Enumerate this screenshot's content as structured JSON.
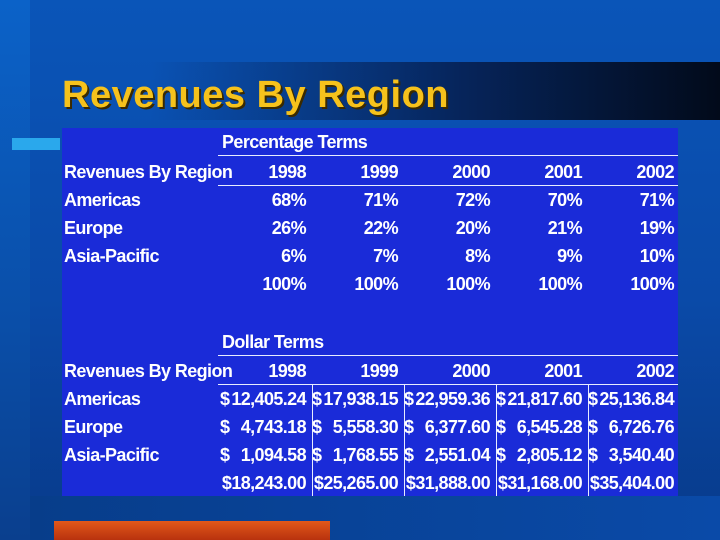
{
  "slide": {
    "title": "Revenues By Region"
  },
  "percentage_table": {
    "section_label": "Percentage Terms",
    "header_label": "Revenues By Region",
    "years": [
      "1998",
      "1999",
      "2000",
      "2001",
      "2002"
    ],
    "rows": [
      {
        "region": "Americas",
        "values": [
          "68%",
          "71%",
          "72%",
          "70%",
          "71%"
        ]
      },
      {
        "region": "Europe",
        "values": [
          "26%",
          "22%",
          "20%",
          "21%",
          "19%"
        ]
      },
      {
        "region": "Asia-Pacific",
        "values": [
          "6%",
          "7%",
          "8%",
          "9%",
          "10%"
        ]
      },
      {
        "region": "",
        "values": [
          "100%",
          "100%",
          "100%",
          "100%",
          "100%"
        ]
      }
    ]
  },
  "dollar_table": {
    "section_label": "Dollar Terms",
    "header_label": "Revenues By Region",
    "years": [
      "1998",
      "1999",
      "2000",
      "2001",
      "2002"
    ],
    "currency_symbol": "$",
    "rows": [
      {
        "region": "Americas",
        "values": [
          "12,405.24",
          "17,938.15",
          "22,959.36",
          "21,817.60",
          "25,136.84"
        ]
      },
      {
        "region": "Europe",
        "values": [
          "4,743.18",
          "5,558.30",
          "6,377.60",
          "6,545.28",
          "6,726.76"
        ]
      },
      {
        "region": "Asia-Pacific",
        "values": [
          "1,094.58",
          "1,768.55",
          "2,551.04",
          "2,805.12",
          "3,540.40"
        ]
      },
      {
        "region": "",
        "values": [
          "18,243.00",
          "25,265.00",
          "31,888.00",
          "31,168.00",
          "35,404.00"
        ]
      }
    ]
  }
}
